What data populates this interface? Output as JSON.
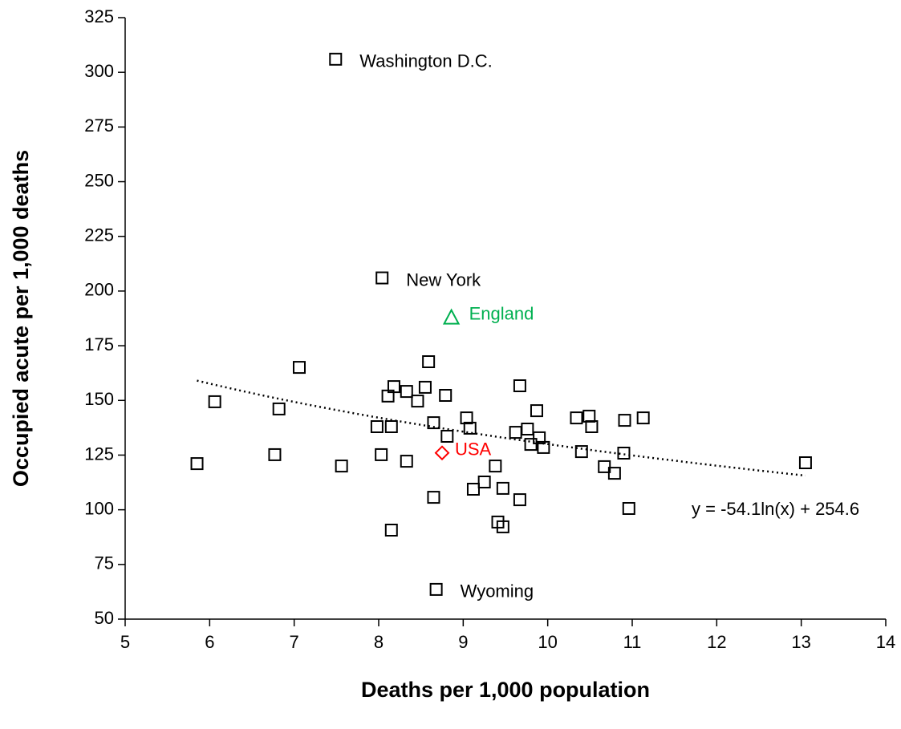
{
  "chart_data": {
    "type": "scatter",
    "xlabel": "Deaths per 1,000 population",
    "ylabel": "Occupied acute per 1,000 deaths",
    "xlim": [
      5,
      14
    ],
    "xticks": [
      5,
      6,
      7,
      8,
      9,
      10,
      11,
      12,
      13,
      14
    ],
    "ylim": [
      50,
      325
    ],
    "yticks": [
      50,
      75,
      100,
      125,
      150,
      175,
      200,
      225,
      250,
      275,
      300,
      325
    ],
    "grid": false,
    "series": [
      {
        "color": "#000000",
        "marker": "square",
        "x": [
          7.49,
          8.04,
          8.68,
          5.85,
          6.06,
          6.77,
          6.82,
          7.06,
          7.56,
          7.98,
          8.03,
          8.11,
          8.15,
          8.18,
          8.15,
          8.33,
          8.33,
          8.46,
          8.55,
          8.59,
          8.65,
          8.65,
          8.79,
          8.81,
          9.04,
          9.08,
          9.12,
          9.25,
          9.38,
          9.41,
          9.47,
          9.47,
          9.62,
          9.67,
          9.67,
          9.76,
          9.8,
          9.87,
          9.9,
          9.95,
          10.34,
          10.4,
          10.49,
          10.52,
          10.67,
          10.79,
          10.91,
          10.9,
          10.96,
          11.13,
          13.05
        ],
        "values": [
          306,
          206,
          63.6,
          121.1,
          149.4,
          125.2,
          146.1,
          165.1,
          120,
          138,
          125.2,
          152,
          138,
          156.3,
          90.7,
          154.1,
          122.2,
          149.7,
          156,
          167.7,
          139.8,
          105.7,
          152.3,
          133.6,
          142,
          137.3,
          109.4,
          112.7,
          120,
          94.4,
          109.8,
          92.2,
          135.4,
          156.7,
          104.6,
          136.9,
          129.9,
          145.3,
          132.9,
          128.5,
          142,
          126.6,
          142.8,
          138,
          119.7,
          116.7,
          140.9,
          125.9,
          100.6,
          142,
          121.5
        ],
        "labels": [
          "Washington D.C.",
          "New York",
          "Wyoming",
          null,
          null,
          null,
          null,
          null,
          null,
          null,
          null,
          null,
          null,
          null,
          null,
          null,
          null,
          null,
          null,
          null,
          null,
          null,
          null,
          null,
          null,
          null,
          null,
          null,
          null,
          null,
          null,
          null,
          null,
          null,
          null,
          null,
          null,
          null,
          null,
          null,
          null,
          null,
          null,
          null,
          null,
          null,
          null,
          null,
          null,
          null,
          null
        ]
      },
      {
        "name": "England",
        "color": "#00b050",
        "marker": "triangle",
        "x": [
          8.86
        ],
        "values": [
          188
        ]
      },
      {
        "name": "USA",
        "color": "#ff0000",
        "marker": "diamond",
        "x": [
          8.75
        ],
        "values": [
          126
        ]
      }
    ],
    "trendline": {
      "slope": -54.1,
      "intercept": 254.6,
      "label": "y = -54.1ln(x) + 254.6",
      "color": "#000000"
    }
  }
}
